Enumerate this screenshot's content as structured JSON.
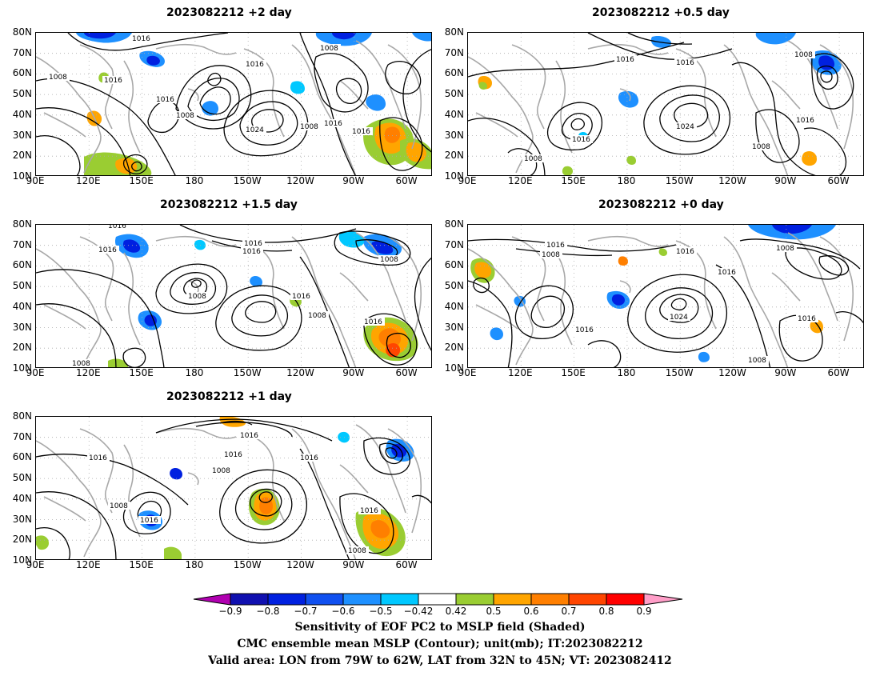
{
  "panels": [
    {
      "id": "p2",
      "title": "2023082212 +2 day"
    },
    {
      "id": "p05",
      "title": "2023082212 +0.5 day"
    },
    {
      "id": "p15",
      "title": "2023082212 +1.5 day"
    },
    {
      "id": "p0",
      "title": "2023082212 +0 day"
    },
    {
      "id": "p1",
      "title": "2023082212 +1 day"
    }
  ],
  "lat_labels": [
    "80N",
    "70N",
    "60N",
    "50N",
    "40N",
    "30N",
    "20N",
    "10N"
  ],
  "lon_labels": [
    "90E",
    "120E",
    "150E",
    "180",
    "150W",
    "120W",
    "90W",
    "60W"
  ],
  "contour_labels": {
    "p2": [
      "1016",
      "1008",
      "1016",
      "1016",
      "1016",
      "1008",
      "1024",
      "1008",
      "1016",
      "1016",
      "1008"
    ],
    "p05": [
      "1016",
      "1016",
      "1008",
      "1016",
      "1024",
      "1016",
      "1008",
      "1008"
    ],
    "p15": [
      "1016",
      "1016",
      "1016",
      "1016",
      "1008",
      "1008",
      "1016",
      "1008",
      "1016",
      "1008"
    ],
    "p0": [
      "1016",
      "1008",
      "1016",
      "1016",
      "1008",
      "1024",
      "1016",
      "1016",
      "1008"
    ],
    "p1": [
      "1016",
      "1016",
      "1016",
      "1016",
      "1008",
      "1008",
      "1016",
      "1016",
      "1008"
    ]
  },
  "colorbar": {
    "labels": [
      "−0.9",
      "−0.8",
      "−0.7",
      "−0.6",
      "−0.5",
      "−0.42",
      "0.42",
      "0.5",
      "0.6",
      "0.7",
      "0.8",
      "0.9"
    ],
    "colors": [
      "#b000b0",
      "#1010b0",
      "#0020e0",
      "#1050f0",
      "#1e90ff",
      "#00c8ff",
      "#ffffff",
      "#9acd32",
      "#ffa500",
      "#ff7f00",
      "#ff4500",
      "#ff0000",
      "#ff9ec8"
    ]
  },
  "colors": {
    "land": "#a8a8a8",
    "contour": "#000000",
    "grid": "#aaaaaa"
  },
  "caption": {
    "line1": "Sensitivity of EOF PC2 to MSLP field (Shaded)",
    "line2": "CMC ensemble mean MSLP (Contour); unit(mb); IT:2023082212",
    "line3": "Valid area: LON from 79W to 62W, LAT from 32N to 45N; VT: 2023082412"
  }
}
